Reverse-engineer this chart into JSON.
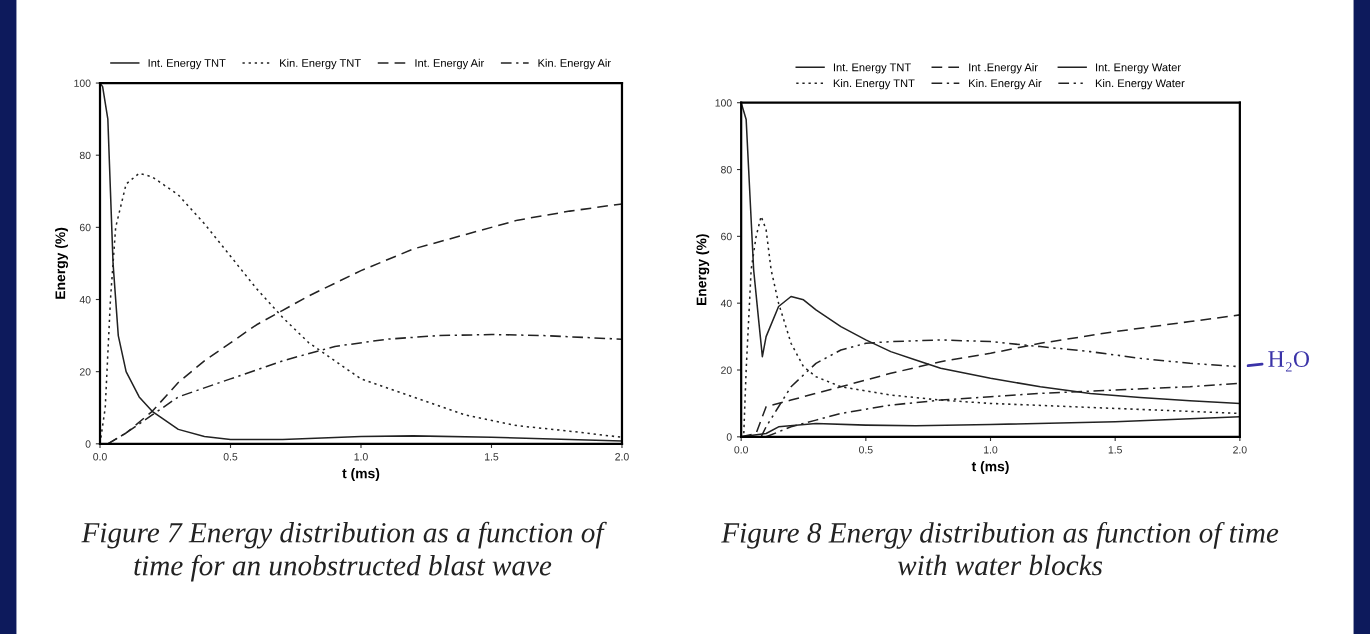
{
  "chart_data": [
    {
      "type": "line",
      "xlabel": "t (ms)",
      "ylabel": "Energy (%)",
      "xlim": [
        0,
        2
      ],
      "ylim": [
        0,
        100
      ],
      "xticks": [
        {
          "value": 0,
          "label": "0.0"
        },
        {
          "value": 0.5,
          "label": "0.5"
        },
        {
          "value": 1,
          "label": "1.0"
        },
        {
          "value": 1.5,
          "label": "1.5"
        },
        {
          "value": 2,
          "label": "2.0"
        }
      ],
      "yticks": [
        0,
        20,
        40,
        60,
        80,
        100
      ],
      "grid": false,
      "legend": "top",
      "marker": "none",
      "annotations": [
        "Figure 7 Energy distribution as a function of time for an unobstructed blast wave"
      ],
      "series": [
        {
          "name": "Int. Energy TNT",
          "color": "#222222",
          "line_style": "solid",
          "x": [
            0,
            0.01,
            0.03,
            0.05,
            0.07,
            0.1,
            0.15,
            0.2,
            0.3,
            0.4,
            0.5,
            0.7,
            1.0,
            1.2,
            1.5,
            2.0
          ],
          "values": [
            100,
            99,
            90,
            50,
            30,
            20,
            13,
            9,
            4,
            2,
            1.2,
            1.2,
            2,
            2.2,
            1.8,
            0.8
          ]
        },
        {
          "name": "Kin. Energy TNT",
          "color": "#222222",
          "line_style": "dotted",
          "x": [
            0,
            0.02,
            0.04,
            0.06,
            0.1,
            0.15,
            0.2,
            0.3,
            0.4,
            0.5,
            0.6,
            0.7,
            0.8,
            0.9,
            1.0,
            1.2,
            1.4,
            1.6,
            1.8,
            2.0
          ],
          "values": [
            0,
            10,
            40,
            60,
            72,
            75,
            74,
            69,
            61,
            52,
            43,
            35,
            28,
            23,
            18,
            13,
            8,
            5,
            3.5,
            1.8
          ]
        },
        {
          "name": "Int. Energy Air",
          "color": "#222222",
          "line_style": "dashed",
          "x": [
            0.03,
            0.1,
            0.2,
            0.3,
            0.4,
            0.5,
            0.6,
            0.7,
            0.8,
            1.0,
            1.2,
            1.4,
            1.6,
            1.8,
            2.0
          ],
          "values": [
            0,
            3,
            9,
            17,
            23,
            28,
            33,
            37,
            41,
            48,
            54,
            58,
            62,
            64.5,
            66.5
          ]
        },
        {
          "name": "Kin. Energy Air",
          "color": "#222222",
          "line_style": "dashdot",
          "x": [
            0.03,
            0.1,
            0.2,
            0.3,
            0.5,
            0.7,
            0.9,
            1.1,
            1.3,
            1.5,
            1.7,
            2.0
          ],
          "values": [
            0,
            3,
            8,
            13,
            18,
            23,
            27,
            29,
            30,
            30.3,
            30,
            29
          ]
        }
      ]
    },
    {
      "type": "line",
      "xlabel": "t (ms)",
      "ylabel": "Energy (%)",
      "xlim": [
        0,
        2
      ],
      "ylim": [
        0,
        100
      ],
      "xticks": [
        {
          "value": 0,
          "label": "0.0"
        },
        {
          "value": 0.5,
          "label": "0.5"
        },
        {
          "value": 1,
          "label": "1.0"
        },
        {
          "value": 1.5,
          "label": "1.5"
        },
        {
          "value": 2,
          "label": "2.0"
        }
      ],
      "yticks": [
        0,
        20,
        40,
        60,
        80,
        100
      ],
      "grid": false,
      "legend": "top",
      "marker": "none",
      "annotations": [
        "Figure 8 Energy distribution as function of time with water blocks",
        {
          "text": "H₂O",
          "x": 2.0,
          "y": 21
        }
      ],
      "series": [
        {
          "name": "Int. Energy TNT",
          "color": "#222222",
          "line_style": "solid",
          "x": [
            0,
            0.02,
            0.03,
            0.05,
            0.07,
            0.085,
            0.1,
            0.15,
            0.2,
            0.25,
            0.3,
            0.4,
            0.5,
            0.6,
            0.7,
            0.8,
            1.0,
            1.2,
            1.4,
            1.6,
            1.8,
            2.0
          ],
          "values": [
            100,
            95,
            80,
            50,
            35,
            24,
            30,
            39,
            42,
            41,
            38,
            33,
            29,
            25.5,
            23,
            20.5,
            17.5,
            15,
            13,
            11.8,
            10.8,
            10
          ]
        },
        {
          "name": "Kin. Energy TNT",
          "color": "#222222",
          "line_style": "dotted",
          "x": [
            0,
            0.01,
            0.02,
            0.04,
            0.06,
            0.08,
            0.1,
            0.12,
            0.15,
            0.2,
            0.25,
            0.3,
            0.4,
            0.6,
            0.8,
            1.0,
            1.5,
            2.0
          ],
          "values": [
            0,
            0,
            20,
            50,
            60,
            66,
            62,
            50,
            40,
            28,
            21,
            18,
            15,
            12.5,
            11,
            10,
            8.5,
            7
          ]
        },
        {
          "name": "Int .Energy Air",
          "color": "#222222",
          "line_style": "dashed",
          "x": [
            0,
            0.06,
            0.08,
            0.1,
            0.2,
            0.4,
            0.6,
            0.8,
            1.0,
            1.2,
            1.5,
            1.8,
            2.0
          ],
          "values": [
            0,
            1,
            5,
            9,
            11,
            15,
            19,
            22.5,
            25,
            28,
            31.5,
            34.5,
            36.5
          ]
        },
        {
          "name": "Kin. Energy Air",
          "color": "#222222",
          "line_style": "dashdot",
          "x": [
            0.1,
            0.2,
            0.3,
            0.4,
            0.6,
            0.8,
            1.0,
            1.2,
            1.5,
            1.8,
            2.0
          ],
          "values": [
            0,
            3,
            5,
            7,
            9.5,
            11,
            12,
            13,
            14,
            15,
            16
          ]
        },
        {
          "name": "Int. Energy Water",
          "color": "#222222",
          "line_style": "solid",
          "x": [
            0,
            0.1,
            0.15,
            0.3,
            0.5,
            0.7,
            1.0,
            1.5,
            2.0
          ],
          "values": [
            0,
            1,
            3,
            4,
            3.5,
            3.3,
            3.7,
            4.5,
            6
          ]
        },
        {
          "name": "Kin. Energy Water",
          "color": "#222222",
          "line_style": "dashdotdot",
          "x": [
            0.08,
            0.1,
            0.15,
            0.2,
            0.3,
            0.4,
            0.5,
            0.6,
            0.8,
            1.0,
            1.2,
            1.4,
            1.6,
            1.8,
            2.0
          ],
          "values": [
            0,
            3,
            9,
            15,
            22,
            26,
            28,
            28.5,
            29,
            28.5,
            27,
            25.5,
            23.5,
            22,
            21
          ]
        }
      ]
    }
  ]
}
